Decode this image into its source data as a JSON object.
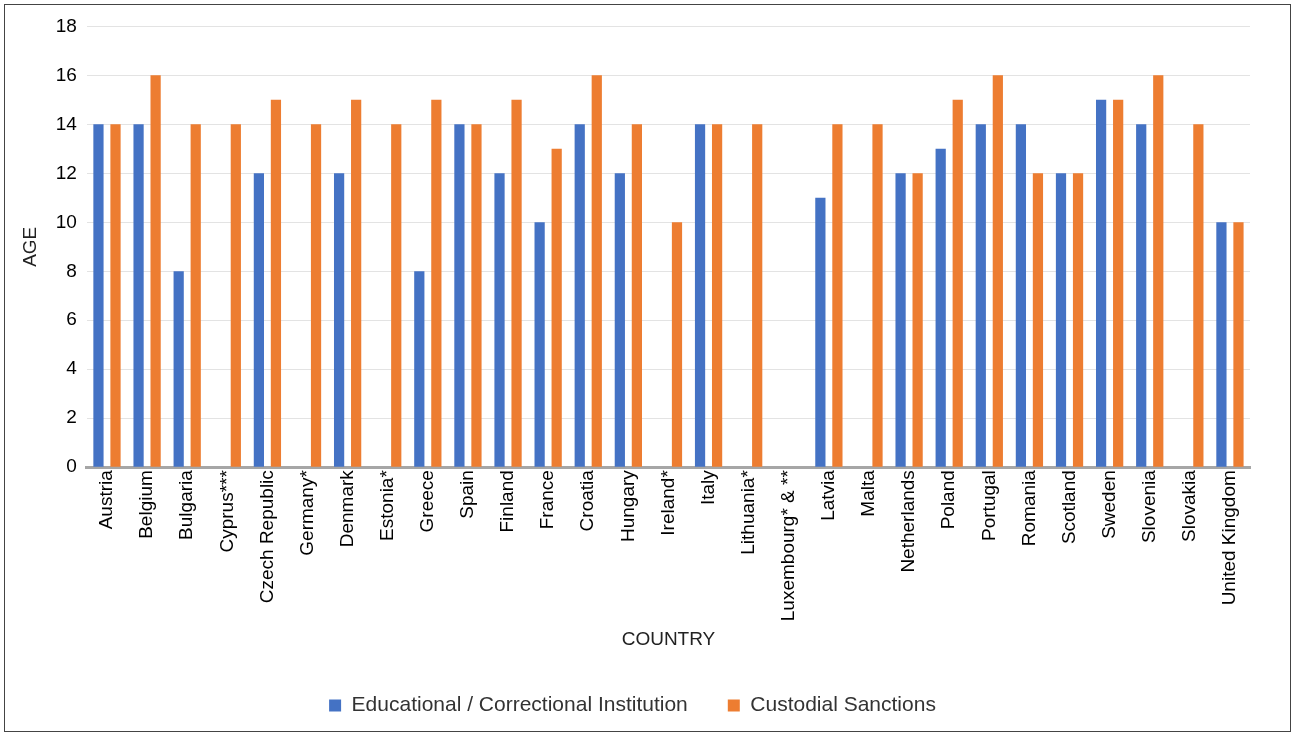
{
  "chart_data": {
    "type": "bar",
    "xlabel": "COUNTRY",
    "ylabel": "AGE",
    "categories": [
      "Austria",
      "Belgium",
      "Bulgaria",
      "Cyprus***",
      "Czech Republic",
      "Germany*",
      "Denmark",
      "Estonia*",
      "Greece",
      "Spain",
      "Finland",
      "France",
      "Croatia",
      "Hungary",
      "Ireland*",
      "Italy",
      "Lithuania*",
      "Luxembourg* & **",
      "Latvia",
      "Malta",
      "Netherlands",
      "Poland",
      "Portugal",
      "Romania",
      "Scotland",
      "Sweden",
      "Slovenia",
      "Slovakia",
      "United Kingdom"
    ],
    "series": [
      {
        "name": "Educational / Correctional Institution",
        "color": "#4472c4",
        "values": [
          14,
          14,
          8,
          null,
          12,
          null,
          12,
          null,
          8,
          14,
          12,
          10,
          14,
          12,
          null,
          14,
          null,
          null,
          11,
          null,
          12,
          13,
          14,
          14,
          12,
          15,
          14,
          null,
          10
        ]
      },
      {
        "name": "Custodial Sanctions",
        "color": "#ed7d31",
        "values": [
          14,
          16,
          14,
          14,
          15,
          14,
          15,
          14,
          15,
          14,
          15,
          13,
          16,
          14,
          10,
          14,
          14,
          null,
          14,
          14,
          12,
          15,
          16,
          12,
          12,
          15,
          16,
          14,
          10
        ]
      }
    ],
    "ylim": [
      0,
      18
    ],
    "yticks": [
      0,
      2,
      4,
      6,
      8,
      10,
      12,
      14,
      16,
      18
    ],
    "grid": "y",
    "legend": "bottom"
  }
}
